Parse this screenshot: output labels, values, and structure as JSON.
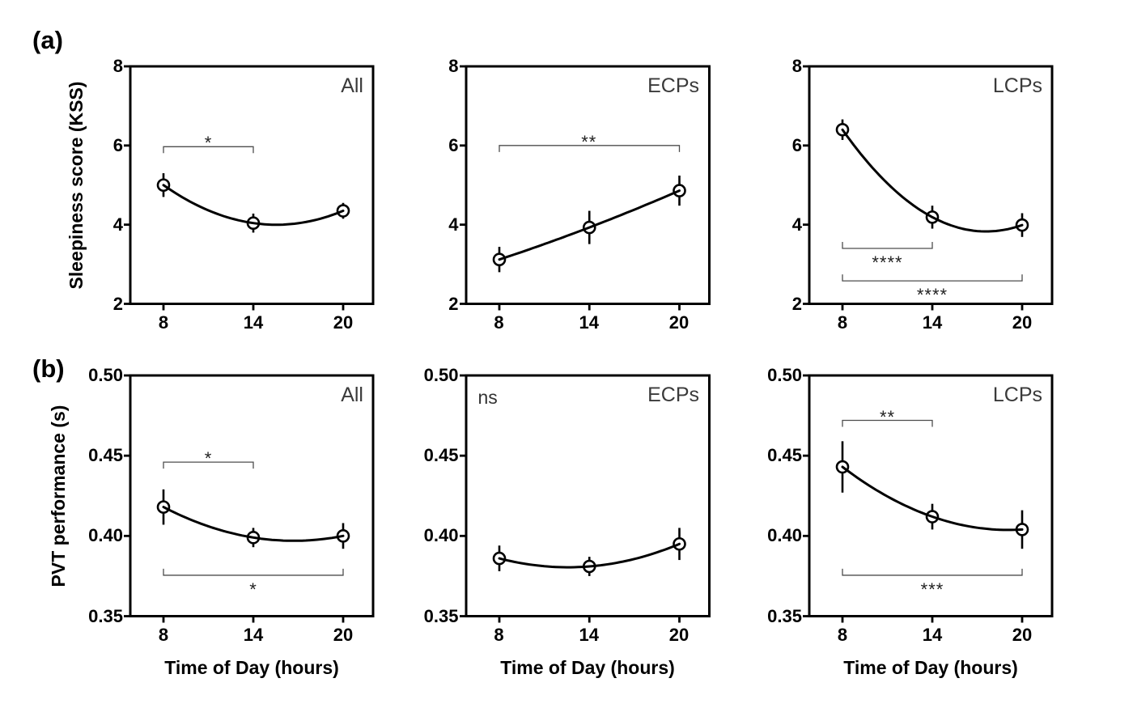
{
  "figure": {
    "background_color": "#ffffff",
    "row_labels": [
      "(a)",
      "(b)"
    ],
    "x_axis_label": "Time of Day (hours)",
    "row_y_labels": [
      "Sleepiness score (KSS)",
      "PVT performance (s)"
    ],
    "colors": {
      "line": "#000000",
      "marker_fill": "#ffffff",
      "bracket": "#4d4d4d",
      "tag_text": "#3a3a3a"
    }
  },
  "chart_data": [
    {
      "id": "kss-all",
      "row": 0,
      "col": 0,
      "type": "scatter",
      "group_label": "All",
      "x": [
        8,
        14,
        20
      ],
      "xticks": [
        8,
        14,
        20
      ],
      "xtick_labels": [
        "8",
        "14",
        "20"
      ],
      "y": [
        5.0,
        4.04,
        4.35
      ],
      "yerr": [
        0.3,
        0.24,
        0.2
      ],
      "ylim": [
        2,
        8
      ],
      "yticks": [
        2,
        4,
        6,
        8
      ],
      "ytick_labels": [
        "2",
        "4",
        "6",
        "8"
      ],
      "significance": [
        {
          "x1": 8,
          "x2": 14,
          "y": 5.97,
          "label": "*",
          "side": "above"
        }
      ],
      "annotation": ""
    },
    {
      "id": "kss-ecps",
      "row": 0,
      "col": 1,
      "type": "scatter",
      "group_label": "ECPs",
      "x": [
        8,
        14,
        20
      ],
      "xticks": [
        8,
        14,
        20
      ],
      "xtick_labels": [
        "8",
        "14",
        "20"
      ],
      "y": [
        3.12,
        3.93,
        4.86
      ],
      "yerr": [
        0.32,
        0.42,
        0.38
      ],
      "ylim": [
        2,
        8
      ],
      "yticks": [
        2,
        4,
        6,
        8
      ],
      "ytick_labels": [
        "2",
        "4",
        "6",
        "8"
      ],
      "significance": [
        {
          "x1": 8,
          "x2": 20,
          "y": 6.0,
          "label": "**",
          "side": "above"
        }
      ],
      "annotation": ""
    },
    {
      "id": "kss-lcps",
      "row": 0,
      "col": 2,
      "type": "scatter",
      "group_label": "LCPs",
      "x": [
        8,
        14,
        20
      ],
      "xticks": [
        8,
        14,
        20
      ],
      "xtick_labels": [
        "8",
        "14",
        "20"
      ],
      "y": [
        6.4,
        4.19,
        3.99
      ],
      "yerr": [
        0.26,
        0.29,
        0.3
      ],
      "ylim": [
        2,
        8
      ],
      "yticks": [
        2,
        4,
        6,
        8
      ],
      "ytick_labels": [
        "2",
        "4",
        "6",
        "8"
      ],
      "significance": [
        {
          "x1": 8,
          "x2": 14,
          "y": 3.4,
          "label": "****",
          "side": "below"
        },
        {
          "x1": 8,
          "x2": 20,
          "y": 2.58,
          "label": "****",
          "side": "below"
        }
      ],
      "annotation": ""
    },
    {
      "id": "pvt-all",
      "row": 1,
      "col": 0,
      "type": "scatter",
      "group_label": "All",
      "x": [
        8,
        14,
        20
      ],
      "xticks": [
        8,
        14,
        20
      ],
      "xtick_labels": [
        "8",
        "14",
        "20"
      ],
      "y": [
        0.418,
        0.399,
        0.4
      ],
      "yerr": [
        0.011,
        0.006,
        0.008
      ],
      "ylim": [
        0.35,
        0.5
      ],
      "yticks": [
        0.35,
        0.4,
        0.45,
        0.5
      ],
      "ytick_labels": [
        "0.35",
        "0.40",
        "0.45",
        "0.50"
      ],
      "significance": [
        {
          "x1": 8,
          "x2": 14,
          "y": 0.446,
          "label": "*",
          "side": "above"
        },
        {
          "x1": 8,
          "x2": 20,
          "y": 0.3755,
          "label": "*",
          "side": "below"
        }
      ],
      "annotation": ""
    },
    {
      "id": "pvt-ecps",
      "row": 1,
      "col": 1,
      "type": "scatter",
      "group_label": "ECPs",
      "x": [
        8,
        14,
        20
      ],
      "xticks": [
        8,
        14,
        20
      ],
      "xtick_labels": [
        "8",
        "14",
        "20"
      ],
      "y": [
        0.386,
        0.381,
        0.395
      ],
      "yerr": [
        0.008,
        0.006,
        0.01
      ],
      "ylim": [
        0.35,
        0.5
      ],
      "yticks": [
        0.35,
        0.4,
        0.45,
        0.5
      ],
      "ytick_labels": [
        "0.35",
        "0.40",
        "0.45",
        "0.50"
      ],
      "significance": [],
      "annotation": "ns"
    },
    {
      "id": "pvt-lcps",
      "row": 1,
      "col": 2,
      "type": "scatter",
      "group_label": "LCPs",
      "x": [
        8,
        14,
        20
      ],
      "xticks": [
        8,
        14,
        20
      ],
      "xtick_labels": [
        "8",
        "14",
        "20"
      ],
      "y": [
        0.443,
        0.412,
        0.404
      ],
      "yerr": [
        0.016,
        0.008,
        0.012
      ],
      "ylim": [
        0.35,
        0.5
      ],
      "yticks": [
        0.35,
        0.4,
        0.45,
        0.5
      ],
      "ytick_labels": [
        "0.35",
        "0.40",
        "0.45",
        "0.50"
      ],
      "significance": [
        {
          "x1": 8,
          "x2": 14,
          "y": 0.472,
          "label": "**",
          "side": "above"
        },
        {
          "x1": 8,
          "x2": 20,
          "y": 0.3755,
          "label": "***",
          "side": "below"
        }
      ],
      "annotation": ""
    }
  ]
}
